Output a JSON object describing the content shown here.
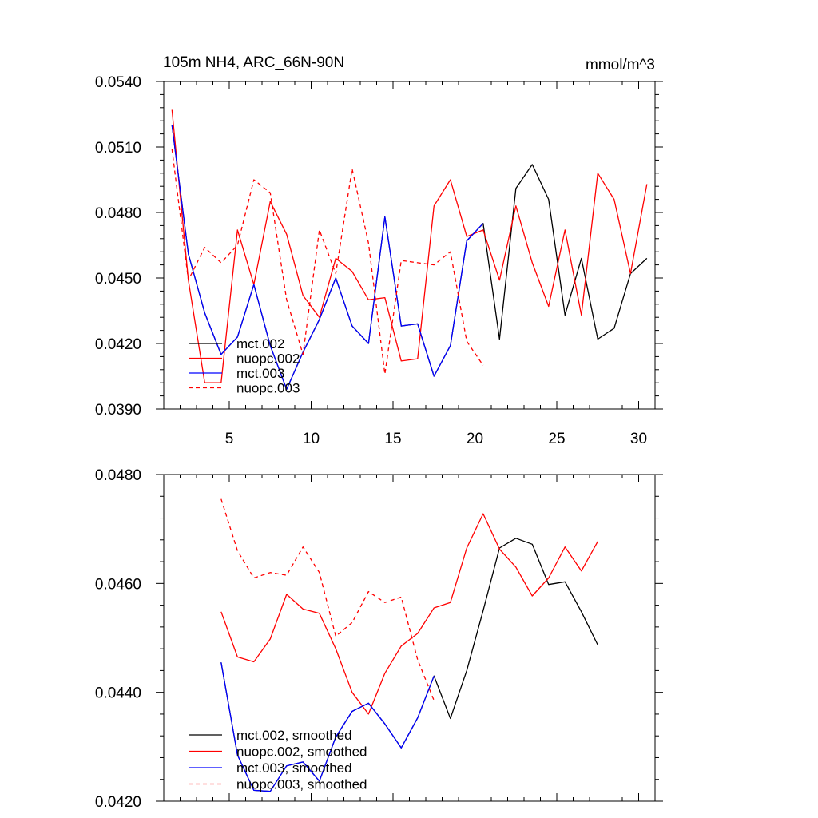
{
  "chart_data": [
    {
      "type": "line",
      "title": "105m NH4, ARC_66N-90N",
      "units": "mmol/m^3",
      "xlabel": "",
      "ylabel": "",
      "xlim": [
        1,
        31
      ],
      "ylim": [
        0.039,
        0.054
      ],
      "xticks": [
        5,
        10,
        15,
        20,
        25,
        30
      ],
      "xtick_labels": [
        "5",
        "10",
        "15",
        "20",
        "25",
        "30"
      ],
      "yticks": [
        0.039,
        0.042,
        0.045,
        0.048,
        0.051,
        0.054
      ],
      "ytick_labels": [
        "0.0390",
        "0.0420",
        "0.0450",
        "0.0480",
        "0.0510",
        "0.0540"
      ],
      "legend_position": "lower-left",
      "series": [
        {
          "name": "mct.002",
          "label": "mct.002",
          "color": "#000000",
          "dash": false,
          "x": [
            1.5,
            2.5,
            3.5,
            4.5,
            5.5,
            6.5,
            7.5,
            8.5,
            9.5,
            10.5,
            11.5,
            12.5,
            13.5,
            14.5,
            15.5,
            16.5,
            17.5,
            18.5,
            19.5,
            20.5,
            21.5,
            22.5,
            23.5,
            24.5,
            25.5,
            26.5,
            27.5,
            28.5,
            29.5,
            30.5
          ],
          "values": [
            0.052,
            0.0461,
            0.0434,
            0.0415,
            0.0423,
            0.0447,
            0.0419,
            0.0399,
            0.0416,
            0.0431,
            0.045,
            0.0428,
            0.042,
            0.0478,
            0.0428,
            0.0429,
            0.0405,
            0.0419,
            0.0467,
            0.0475,
            0.0422,
            0.0491,
            0.0502,
            0.0486,
            0.0433,
            0.0459,
            0.0422,
            0.0427,
            0.0452,
            0.0459
          ]
        },
        {
          "name": "nuopc.002",
          "label": "nuopc.002",
          "color": "#ff0000",
          "dash": false,
          "x": [
            1.5,
            2.5,
            3.5,
            4.5,
            5.5,
            6.5,
            7.5,
            8.5,
            9.5,
            10.5,
            11.5,
            12.5,
            13.5,
            14.5,
            15.5,
            16.5,
            17.5,
            18.5,
            19.5,
            20.5,
            21.5,
            22.5,
            23.5,
            24.5,
            25.5,
            26.5,
            27.5,
            28.5,
            29.5,
            30.5
          ],
          "values": [
            0.0527,
            0.0449,
            0.0402,
            0.0402,
            0.0472,
            0.0447,
            0.0485,
            0.047,
            0.0442,
            0.0432,
            0.0459,
            0.0453,
            0.044,
            0.0441,
            0.0412,
            0.0413,
            0.0483,
            0.0495,
            0.0469,
            0.0472,
            0.0449,
            0.0483,
            0.0457,
            0.0437,
            0.0472,
            0.0433,
            0.0498,
            0.0486,
            0.0452,
            0.0493
          ]
        },
        {
          "name": "mct.003",
          "label": "mct.003",
          "color": "#0000ff",
          "dash": false,
          "x": [
            1.5,
            2.5,
            3.5,
            4.5,
            5.5,
            6.5,
            7.5,
            8.5,
            9.5,
            10.5,
            11.5,
            12.5,
            13.5,
            14.5,
            15.5,
            16.5,
            17.5,
            18.5,
            19.5,
            20.5
          ],
          "values": [
            0.052,
            0.0461,
            0.0434,
            0.0415,
            0.0423,
            0.0447,
            0.0419,
            0.0399,
            0.0416,
            0.0431,
            0.045,
            0.0428,
            0.042,
            0.0478,
            0.0428,
            0.0429,
            0.0405,
            0.0419,
            0.0467,
            0.0475
          ]
        },
        {
          "name": "nuopc.003",
          "label": "nuopc.003",
          "color": "#ff0000",
          "dash": true,
          "x": [
            1.5,
            2.5,
            3.5,
            4.5,
            5.5,
            6.5,
            7.5,
            8.5,
            9.5,
            10.5,
            11.5,
            12.5,
            13.5,
            14.5,
            15.5,
            16.5,
            17.5,
            18.5,
            19.5,
            20.5
          ],
          "values": [
            0.0509,
            0.0449,
            0.0464,
            0.0457,
            0.0465,
            0.0495,
            0.0489,
            0.044,
            0.0415,
            0.0472,
            0.0452,
            0.05,
            0.0466,
            0.0406,
            0.0458,
            0.0457,
            0.0456,
            0.0462,
            0.0421,
            0.041
          ]
        }
      ]
    },
    {
      "type": "line",
      "title": "",
      "xlabel": "",
      "ylabel": "",
      "xlim": [
        1,
        31
      ],
      "ylim": [
        0.042,
        0.048
      ],
      "xticks": [
        5,
        10,
        15,
        20,
        25,
        30
      ],
      "xtick_labels": [],
      "yticks": [
        0.042,
        0.044,
        0.046,
        0.048
      ],
      "ytick_labels": [
        "0.0420",
        "0.0440",
        "0.0460",
        "0.0480"
      ],
      "legend_position": "lower-left",
      "series": [
        {
          "name": "mct.002, smoothed",
          "label": "mct.002, smoothed",
          "color": "#000000",
          "dash": false,
          "x": [
            4.5,
            5.5,
            6.5,
            7.5,
            8.5,
            9.5,
            10.5,
            11.5,
            12.5,
            13.5,
            14.5,
            15.5,
            16.5,
            17.5,
            18.5,
            19.5,
            20.5,
            21.5,
            22.5,
            23.5,
            24.5,
            25.5,
            26.5,
            27.5
          ],
          "values": [
            0.04455,
            0.04285,
            0.0422,
            0.04218,
            0.04265,
            0.04272,
            0.04237,
            0.04318,
            0.04365,
            0.0438,
            0.04342,
            0.04298,
            0.04353,
            0.0443,
            0.04352,
            0.0444,
            0.0455,
            0.04665,
            0.04683,
            0.04672,
            0.04598,
            0.04603,
            0.04548,
            0.04487
          ]
        },
        {
          "name": "nuopc.002, smoothed",
          "label": "nuopc.002, smoothed",
          "color": "#ff0000",
          "dash": false,
          "x": [
            4.5,
            5.5,
            6.5,
            7.5,
            8.5,
            9.5,
            10.5,
            11.5,
            12.5,
            13.5,
            14.5,
            15.5,
            16.5,
            17.5,
            18.5,
            19.5,
            20.5,
            21.5,
            22.5,
            23.5,
            24.5,
            25.5,
            26.5,
            27.5
          ],
          "values": [
            0.04548,
            0.04465,
            0.04456,
            0.04498,
            0.0458,
            0.04553,
            0.04545,
            0.0448,
            0.044,
            0.0436,
            0.04435,
            0.04485,
            0.04508,
            0.04555,
            0.04565,
            0.04665,
            0.04728,
            0.04663,
            0.0463,
            0.04577,
            0.0461,
            0.04667,
            0.04623,
            0.04677
          ]
        },
        {
          "name": "mct.003, smoothed",
          "label": "mct.003, smoothed",
          "color": "#0000ff",
          "dash": false,
          "x": [
            4.5,
            5.5,
            6.5,
            7.5,
            8.5,
            9.5,
            10.5,
            11.5,
            12.5,
            13.5,
            14.5,
            15.5,
            16.5,
            17.5
          ],
          "values": [
            0.04455,
            0.04285,
            0.0422,
            0.04218,
            0.04265,
            0.04272,
            0.04237,
            0.04318,
            0.04365,
            0.0438,
            0.04342,
            0.04298,
            0.04353,
            0.0443
          ]
        },
        {
          "name": "nuopc.003, smoothed",
          "label": "nuopc.003, smoothed",
          "color": "#ff0000",
          "dash": true,
          "x": [
            4.5,
            5.5,
            6.5,
            7.5,
            8.5,
            9.5,
            10.5,
            11.5,
            12.5,
            13.5,
            14.5,
            15.5,
            16.5,
            17.5
          ],
          "values": [
            0.04755,
            0.0466,
            0.0461,
            0.0462,
            0.04615,
            0.04667,
            0.0462,
            0.04503,
            0.04528,
            0.04585,
            0.04565,
            0.04575,
            0.0446,
            0.04385
          ]
        }
      ]
    }
  ]
}
